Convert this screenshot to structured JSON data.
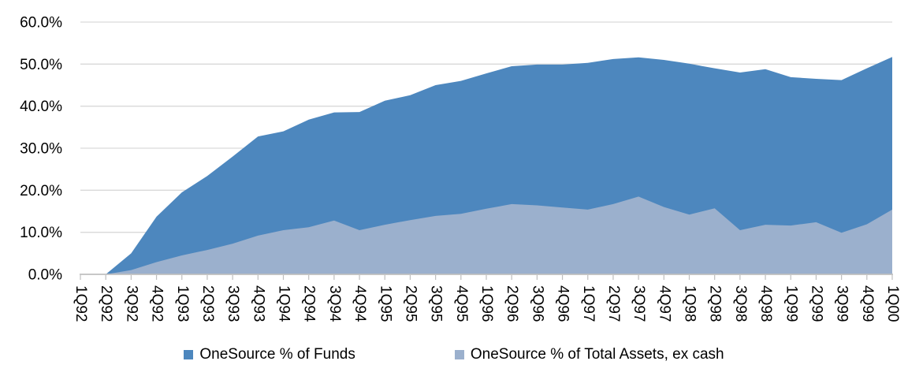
{
  "chart_data": {
    "type": "area",
    "title": "",
    "categories": [
      "1Q92",
      "2Q92",
      "3Q92",
      "4Q92",
      "1Q93",
      "2Q93",
      "3Q93",
      "4Q93",
      "1Q94",
      "2Q94",
      "3Q94",
      "4Q94",
      "1Q95",
      "2Q95",
      "3Q95",
      "4Q95",
      "1Q96",
      "2Q96",
      "3Q96",
      "4Q96",
      "1Q97",
      "2Q97",
      "3Q97",
      "4Q97",
      "1Q98",
      "2Q98",
      "3Q98",
      "4Q98",
      "1Q99",
      "2Q99",
      "3Q99",
      "4Q99",
      "1Q00"
    ],
    "series": [
      {
        "name": "OneSource % of Funds",
        "color": "#4D87BE",
        "values": [
          0.0,
          0.0,
          5.0,
          13.7,
          19.5,
          23.4,
          28.0,
          32.8,
          34.0,
          36.8,
          38.5,
          38.6,
          41.3,
          42.6,
          45.0,
          46.0,
          47.8,
          49.5,
          49.9,
          49.9,
          50.3,
          51.2,
          51.6,
          51.0,
          50.1,
          49.0,
          48.0,
          48.8,
          46.9,
          46.5,
          46.2,
          49.0,
          51.7
        ]
      },
      {
        "name": "OneSource % of Total Assets, ex cash",
        "color": "#9BB0CD",
        "values": [
          0.0,
          0.0,
          1.0,
          2.9,
          4.5,
          5.8,
          7.3,
          9.2,
          10.5,
          11.2,
          12.8,
          10.5,
          11.8,
          12.9,
          13.9,
          14.4,
          15.6,
          16.7,
          16.4,
          15.9,
          15.4,
          16.7,
          18.5,
          16.0,
          14.2,
          15.7,
          10.5,
          11.8,
          11.6,
          12.4,
          9.9,
          11.9,
          15.4
        ]
      }
    ],
    "xlabel": "",
    "ylabel": "",
    "ylim": [
      0,
      60
    ],
    "y_tick_step": 10,
    "y_tick_labels": [
      "0.0%",
      "10.0%",
      "20.0%",
      "30.0%",
      "40.0%",
      "50.0%",
      "60.0%"
    ],
    "x_tick_rotation": 90,
    "grid": true,
    "legend_position": "bottom",
    "gridline_color": "#D9D9D9",
    "axis_color": "#BFBFBF",
    "text_color": "#000000",
    "background_color": "#FFFFFF"
  }
}
